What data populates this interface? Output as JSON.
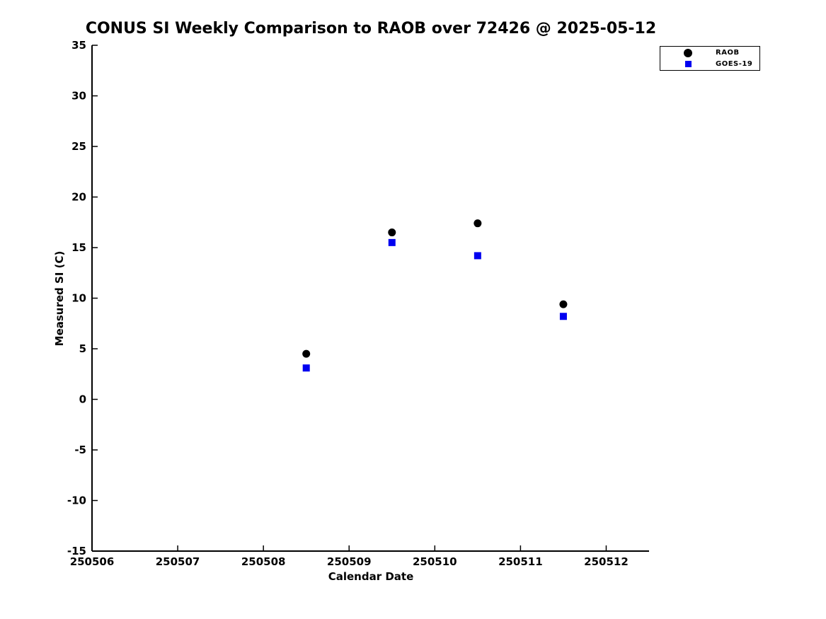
{
  "chart_data": {
    "type": "scatter",
    "title": "CONUS SI Weekly Comparison to RAOB over 72426 @ 2025-05-12",
    "xlabel": "Calendar Date",
    "ylabel": "Measured SI (C)",
    "xlim": [
      250506,
      250512.5
    ],
    "ylim": [
      -15,
      35
    ],
    "x_ticks": [
      250506,
      250507,
      250508,
      250509,
      250510,
      250511,
      250512
    ],
    "y_ticks": [
      -15,
      -10,
      -5,
      0,
      5,
      10,
      15,
      20,
      25,
      30,
      35
    ],
    "grid": false,
    "legend_position": "top-right",
    "series": [
      {
        "name": "RAOB",
        "marker": "circle",
        "color": "#000000",
        "x": [
          250508.5,
          250509.5,
          250510.5,
          250511.5
        ],
        "y": [
          4.5,
          16.5,
          17.4,
          9.4
        ]
      },
      {
        "name": "GOES-19",
        "marker": "square",
        "color": "#0000f0",
        "x": [
          250508.5,
          250509.5,
          250510.5,
          250511.5
        ],
        "y": [
          3.1,
          15.5,
          14.2,
          8.2
        ]
      }
    ],
    "colors": {
      "axis": "#000000",
      "background": "#ffffff"
    }
  }
}
